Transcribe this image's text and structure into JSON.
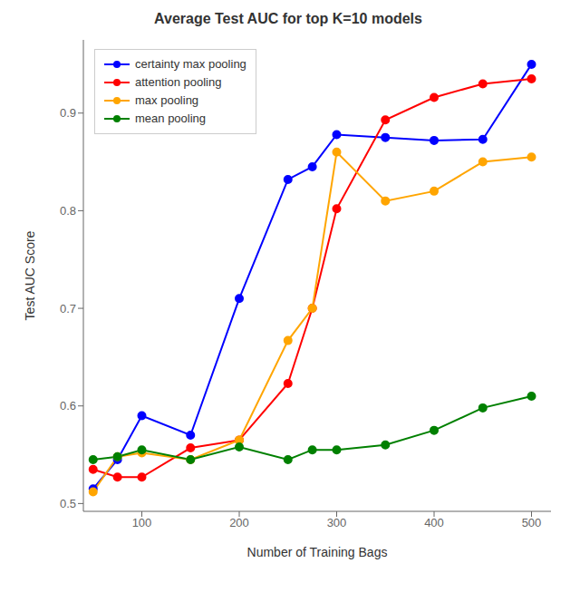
{
  "chart_data": {
    "type": "line",
    "title": "Average Test AUC for top K=10 models",
    "xlabel": "Number of Training Bags",
    "ylabel": "Test AUC Score",
    "x": [
      50,
      75,
      100,
      150,
      200,
      250,
      275,
      300,
      350,
      400,
      450,
      500
    ],
    "xlim": [
      40,
      520
    ],
    "ylim": [
      0.492,
      0.975
    ],
    "xticks": [
      100,
      200,
      300,
      400,
      500
    ],
    "yticks": [
      0.5,
      0.6,
      0.7,
      0.8,
      0.9
    ],
    "series": [
      {
        "name": "certainty max pooling",
        "color": "blue",
        "marker": "circle",
        "values": [
          0.515,
          0.545,
          0.59,
          0.57,
          0.71,
          0.832,
          0.845,
          0.878,
          0.875,
          0.872,
          0.873,
          0.95
        ]
      },
      {
        "name": "attention pooling",
        "color": "red",
        "marker": "circle",
        "values": [
          0.535,
          0.527,
          0.527,
          0.557,
          0.565,
          0.623,
          0.7,
          0.802,
          0.893,
          0.916,
          0.93,
          0.935
        ]
      },
      {
        "name": "max pooling",
        "color": "orange",
        "marker": "circle",
        "values": [
          0.512,
          0.548,
          0.552,
          0.545,
          0.565,
          0.667,
          0.7,
          0.86,
          0.81,
          0.82,
          0.85,
          0.855
        ]
      },
      {
        "name": "mean pooling",
        "color": "green",
        "marker": "circle",
        "values": [
          0.545,
          0.548,
          0.555,
          0.545,
          0.558,
          0.545,
          0.555,
          0.555,
          0.56,
          0.575,
          0.598,
          0.61
        ]
      }
    ],
    "grid": false,
    "legend": "upper left"
  }
}
